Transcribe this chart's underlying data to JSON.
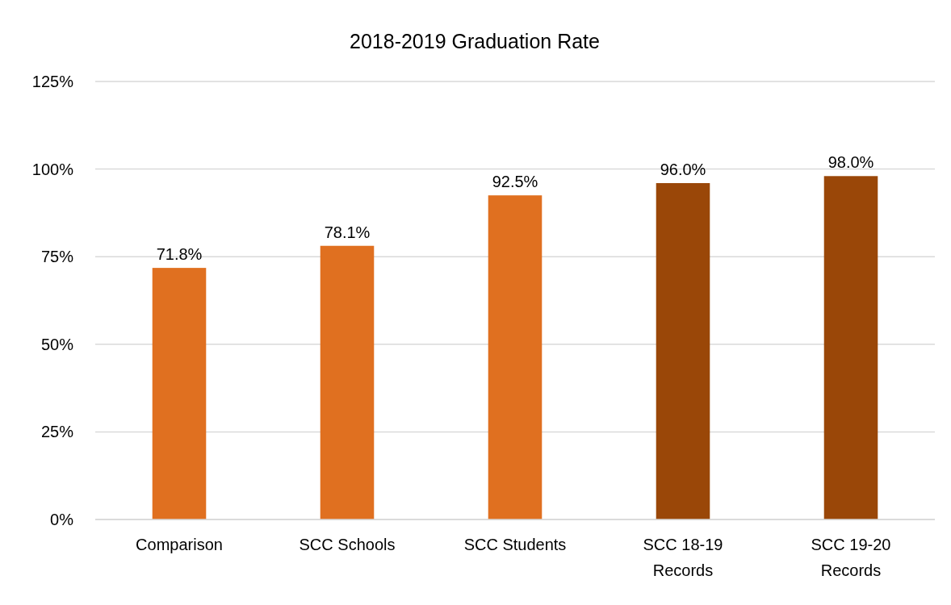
{
  "chart_data": {
    "type": "bar",
    "title": "2018-2019 Graduation Rate",
    "categories": [
      "Comparison",
      "SCC Schools",
      "SCC Students",
      "SCC 18-19 Records",
      "SCC 19-20 Records"
    ],
    "values": [
      71.8,
      78.1,
      92.5,
      96.0,
      98.0
    ],
    "colors": [
      "#e07020",
      "#e07020",
      "#e07020",
      "#9a4708",
      "#9a4708"
    ],
    "value_labels": [
      "71.8%",
      "78.1%",
      "92.5%",
      "96.0%",
      "98.0%"
    ],
    "ylim": [
      0,
      125
    ],
    "yticks": [
      {
        "value": 0,
        "label": "0%"
      },
      {
        "value": 25,
        "label": "25%"
      },
      {
        "value": 50,
        "label": "50%"
      },
      {
        "value": 75,
        "label": "75%"
      },
      {
        "value": 100,
        "label": "100%"
      },
      {
        "value": 125,
        "label": "125%"
      }
    ],
    "grid": "y"
  }
}
